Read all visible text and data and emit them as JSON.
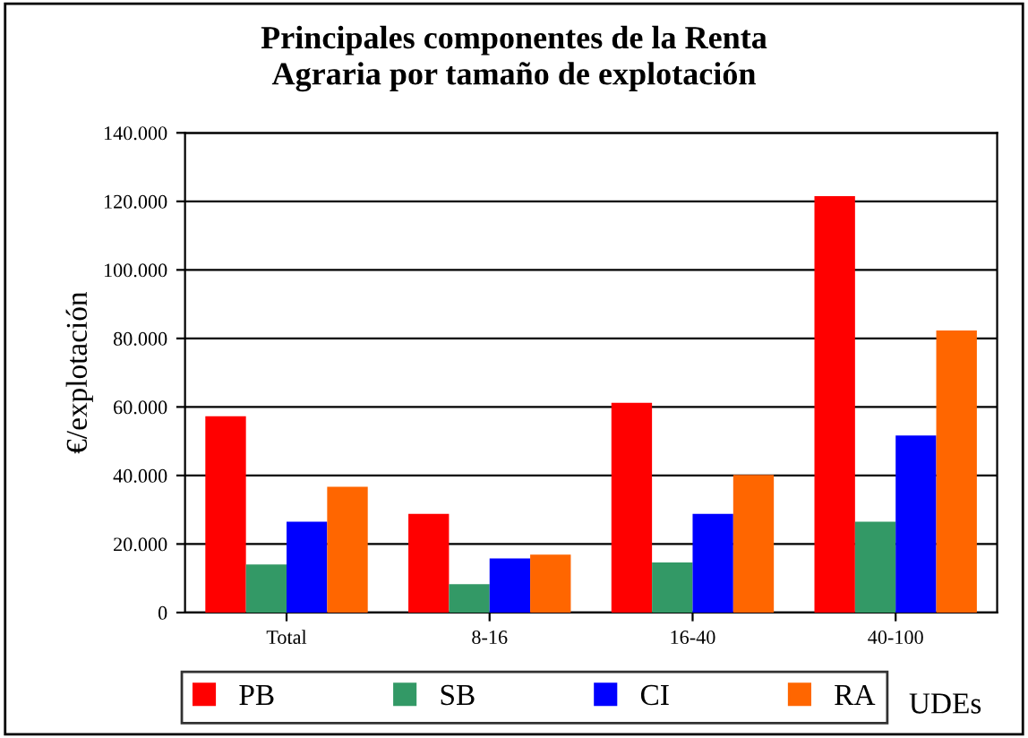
{
  "chart_data": {
    "type": "bar",
    "title": "Principales componentes de la Renta\nAgraria por tamaño de explotación",
    "ylabel": "€/explotación",
    "xlabel": "UDEs",
    "categories": [
      "Total",
      "8-16",
      "16-40",
      "40-100"
    ],
    "series": [
      {
        "name": "PB",
        "color": "#ff0000",
        "values": [
          57300,
          28800,
          61200,
          121500
        ]
      },
      {
        "name": "SB",
        "color": "#339966",
        "values": [
          14000,
          8300,
          14600,
          26500
        ]
      },
      {
        "name": "CI",
        "color": "#0000ff",
        "values": [
          26500,
          15800,
          28800,
          51700
        ]
      },
      {
        "name": "RA",
        "color": "#ff6600",
        "values": [
          36700,
          16900,
          40200,
          82300
        ]
      }
    ],
    "ylim": [
      0,
      140000
    ],
    "yticks": [
      {
        "value": 0,
        "label": "0"
      },
      {
        "value": 20000,
        "label": "20.000"
      },
      {
        "value": 40000,
        "label": "40.000"
      },
      {
        "value": 60000,
        "label": "60.000"
      },
      {
        "value": 80000,
        "label": "80.000"
      },
      {
        "value": 100000,
        "label": "100.000"
      },
      {
        "value": 120000,
        "label": "120.000"
      },
      {
        "value": 140000,
        "label": "140.000"
      }
    ],
    "grid": "y",
    "legend": "bottom"
  }
}
